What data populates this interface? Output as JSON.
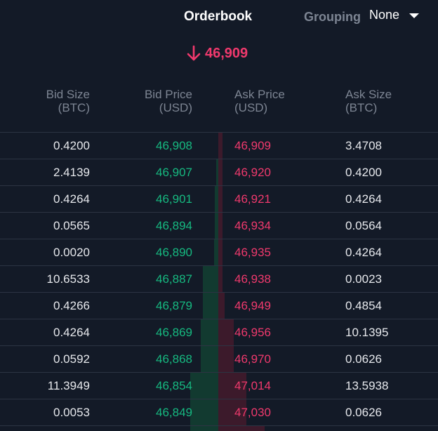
{
  "header": {
    "title": "Orderbook",
    "grouping_label": "Grouping",
    "grouping_value": "None"
  },
  "last_price": {
    "value": "46,909",
    "direction": "down"
  },
  "columns": {
    "bid_size": [
      "Bid Size",
      "(BTC)"
    ],
    "bid_price": [
      "Bid Price",
      "(USD)"
    ],
    "ask_price": [
      "Ask Price",
      "(USD)"
    ],
    "ask_size": [
      "Ask Size",
      "(BTC)"
    ]
  },
  "colors": {
    "background": "#131a27",
    "bid": "#16b980",
    "ask": "#f0396d",
    "bid_depth": "#123a30",
    "ask_depth": "#3c1a2b",
    "muted": "#7d8593"
  },
  "rows": [
    {
      "bid_size": "0.4200",
      "bid_price": "46,908",
      "ask_price": "46,909",
      "ask_size": "3.4708"
    },
    {
      "bid_size": "2.4139",
      "bid_price": "46,907",
      "ask_price": "46,920",
      "ask_size": "0.4200"
    },
    {
      "bid_size": "0.4264",
      "bid_price": "46,901",
      "ask_price": "46,921",
      "ask_size": "0.4264"
    },
    {
      "bid_size": "0.0565",
      "bid_price": "46,894",
      "ask_price": "46,934",
      "ask_size": "0.0564"
    },
    {
      "bid_size": "0.0020",
      "bid_price": "46,890",
      "ask_price": "46,935",
      "ask_size": "0.4264"
    },
    {
      "bid_size": "10.6533",
      "bid_price": "46,887",
      "ask_price": "46,938",
      "ask_size": "0.0023"
    },
    {
      "bid_size": "0.4266",
      "bid_price": "46,879",
      "ask_price": "46,949",
      "ask_size": "0.4854"
    },
    {
      "bid_size": "0.4264",
      "bid_price": "46,869",
      "ask_price": "46,956",
      "ask_size": "10.1395"
    },
    {
      "bid_size": "0.0592",
      "bid_price": "46,868",
      "ask_price": "46,970",
      "ask_size": "0.0626"
    },
    {
      "bid_size": "11.3949",
      "bid_price": "46,854",
      "ask_price": "47,014",
      "ask_size": "13.5938"
    },
    {
      "bid_size": "0.0053",
      "bid_price": "46,849",
      "ask_price": "47,030",
      "ask_size": "0.0626"
    }
  ]
}
